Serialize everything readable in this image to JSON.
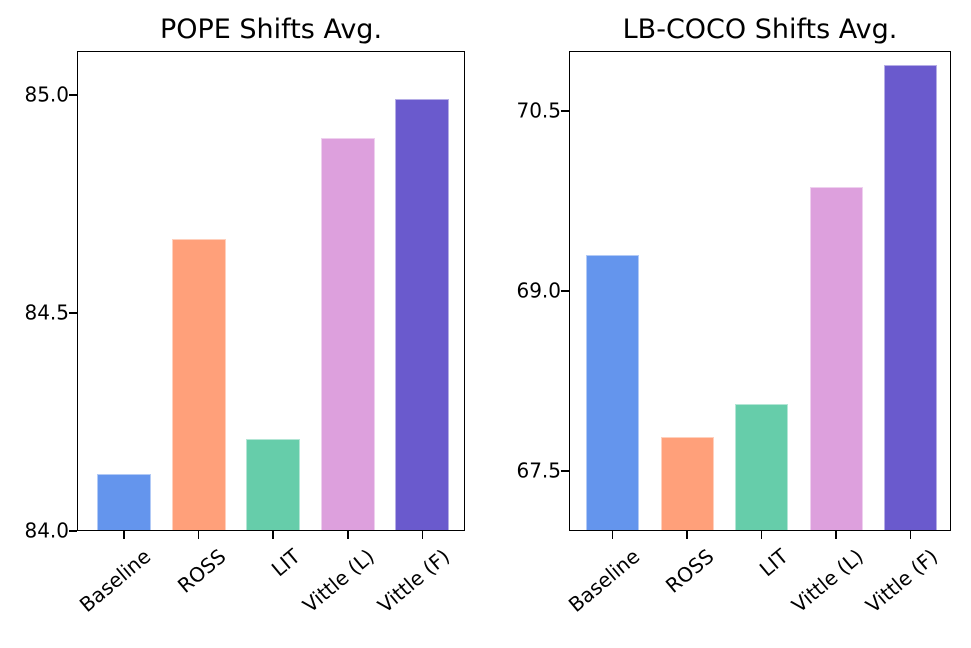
{
  "figure": {
    "background": "#ffffff",
    "text_color": "#000000"
  },
  "chart_data": [
    {
      "type": "bar",
      "title": "POPE Shifts Avg.",
      "categories": [
        "Baseline",
        "ROSS",
        "LIT",
        "Vittle (L)",
        "Vittle (F)"
      ],
      "values": [
        84.13,
        84.67,
        84.21,
        84.9,
        84.99
      ],
      "bar_colors": [
        "#6495ED",
        "#FFA07A",
        "#66CDAA",
        "#DDA0DD",
        "#6A5ACD"
      ],
      "bar_edge": "rgba(255,255,255,0.5)",
      "xlabel": "",
      "ylabel": "",
      "ylim": [
        84.0,
        85.1
      ],
      "yticks": [
        84.0,
        84.5,
        85.0
      ],
      "ytick_labels": [
        "84.0",
        "84.5",
        "85.0"
      ],
      "grid": false,
      "legend": "none"
    },
    {
      "type": "bar",
      "title": "LB-COCO Shifts Avg.",
      "categories": [
        "Baseline",
        "ROSS",
        "LIT",
        "Vittle (L)",
        "Vittle (F)"
      ],
      "values": [
        69.3,
        67.78,
        68.06,
        69.87,
        70.88
      ],
      "bar_colors": [
        "#6495ED",
        "#FFA07A",
        "#66CDAA",
        "#DDA0DD",
        "#6A5ACD"
      ],
      "bar_edge": "rgba(255,255,255,0.5)",
      "xlabel": "",
      "ylabel": "",
      "ylim": [
        67.0,
        71.0
      ],
      "yticks": [
        67.5,
        69.0,
        70.5
      ],
      "ytick_labels": [
        "67.5",
        "69.0",
        "70.5"
      ],
      "grid": false,
      "legend": "none"
    }
  ]
}
